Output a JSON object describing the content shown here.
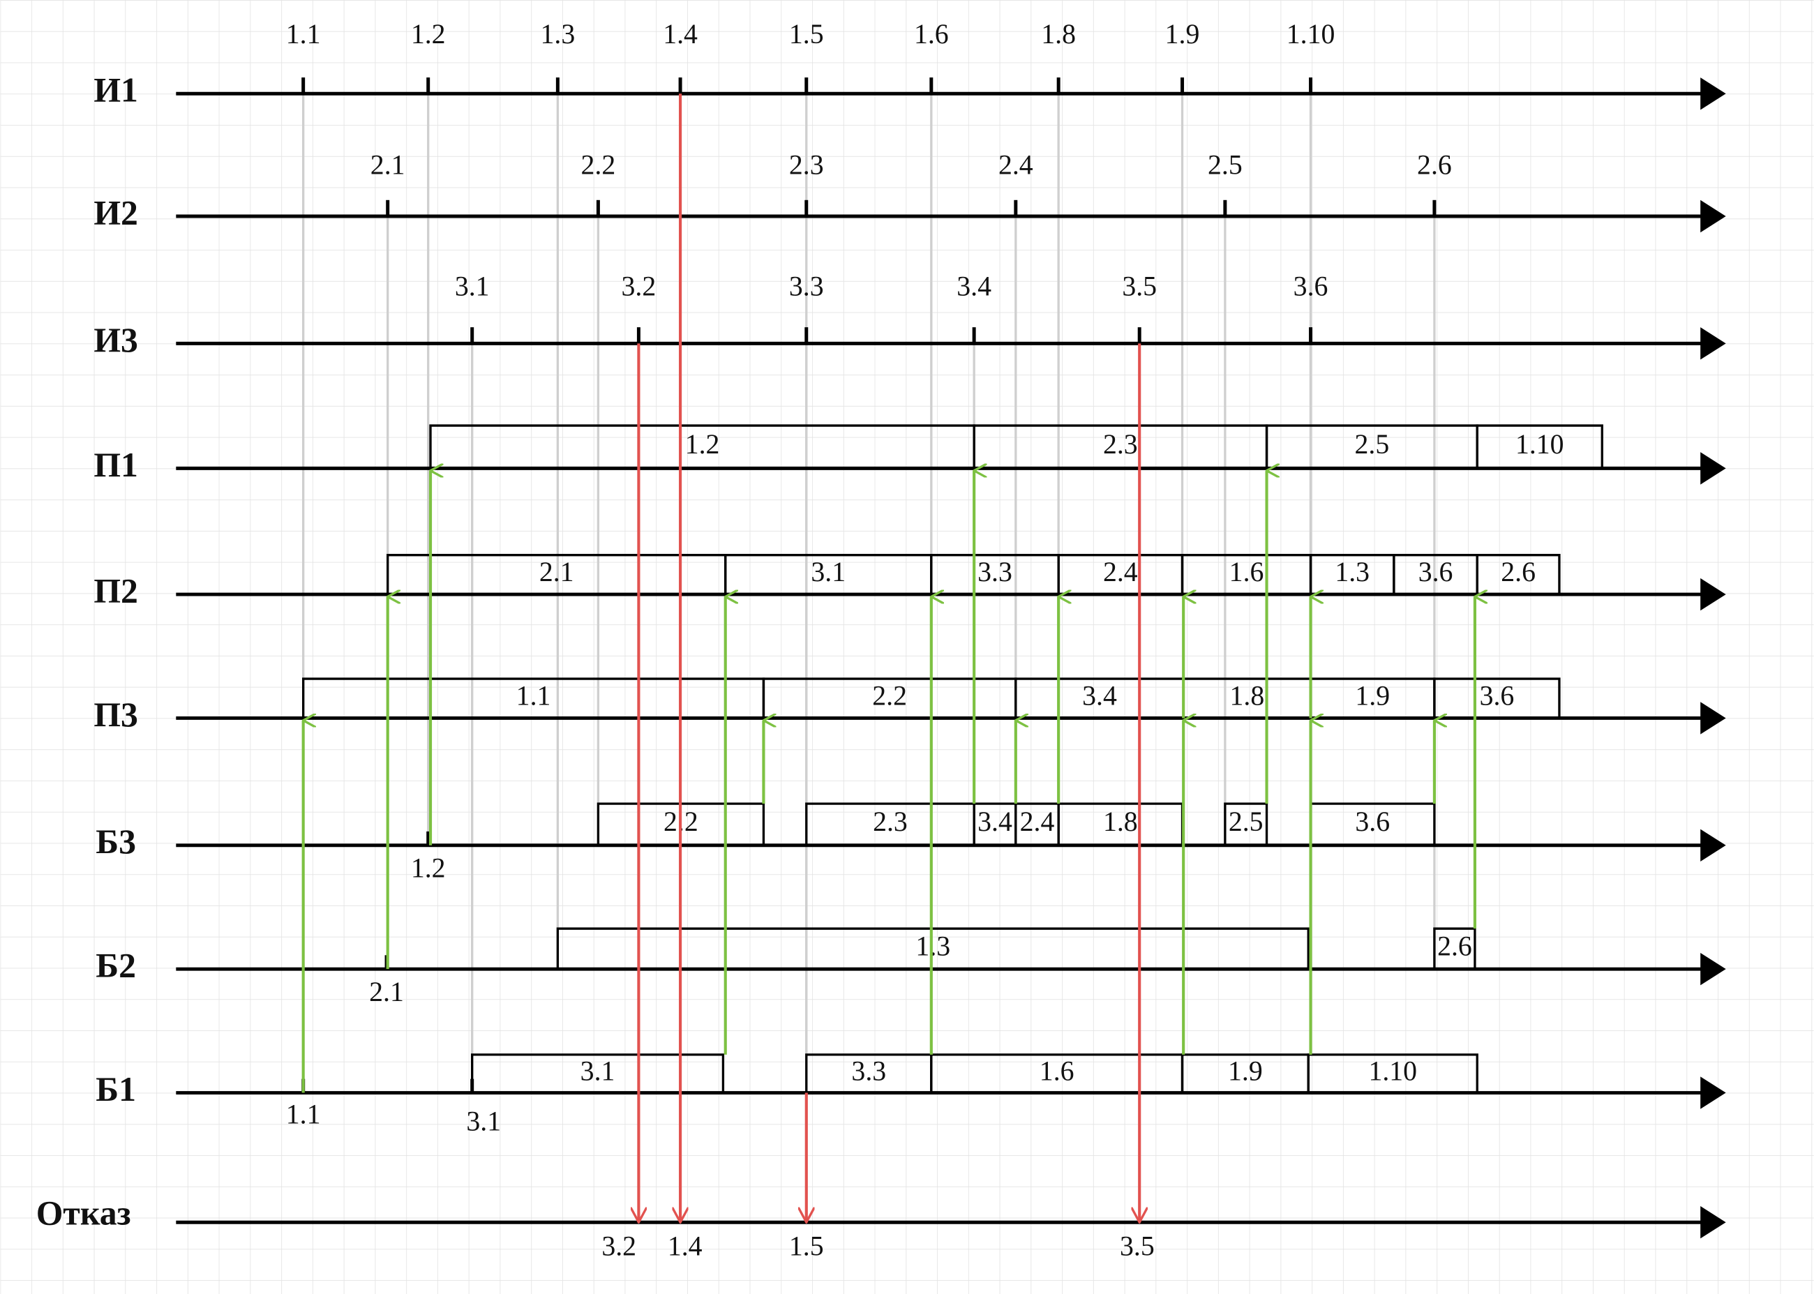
{
  "sources": [
    {
      "label": "И1",
      "events": [
        "1.1",
        "1.2",
        "1.3",
        "1.4",
        "1.5",
        "1.6",
        "1.8",
        "1.9",
        "1.10"
      ]
    },
    {
      "label": "И2",
      "events": [
        "2.1",
        "2.2",
        "2.3",
        "2.4",
        "2.5",
        "2.6"
      ]
    },
    {
      "label": "И3",
      "events": [
        "3.1",
        "3.2",
        "3.3",
        "3.4",
        "3.5",
        "3.6"
      ]
    }
  ],
  "processors": [
    {
      "label": "П1",
      "tasks": [
        "1.2",
        "2.3",
        "2.5",
        "1.10"
      ]
    },
    {
      "label": "П2",
      "tasks": [
        "2.1",
        "3.1",
        "3.3",
        "2.4",
        "1.6",
        "1.3",
        "3.6",
        "2.6"
      ]
    },
    {
      "label": "П3",
      "tasks": [
        "1.1",
        "2.2",
        "3.4",
        "1.8",
        "1.9",
        "3.6"
      ]
    }
  ],
  "buffers": [
    {
      "label": "Б3",
      "tasks": [
        "2.2",
        "2.3",
        "3.4",
        "2.4",
        "1.8",
        "2.5",
        "3.6"
      ],
      "arrivals": [
        "1.2"
      ]
    },
    {
      "label": "Б2",
      "tasks": [
        "1.3",
        "2.6"
      ],
      "arrivals": [
        "2.1"
      ]
    },
    {
      "label": "Б1",
      "tasks": [
        "3.1",
        "3.3",
        "1.6",
        "1.9",
        "1.10"
      ],
      "arrivals": [
        "1.1",
        "3.1"
      ]
    }
  ],
  "rejection": {
    "label": "Отказ",
    "events": [
      "3.2",
      "1.4",
      "1.5",
      "3.5"
    ]
  }
}
